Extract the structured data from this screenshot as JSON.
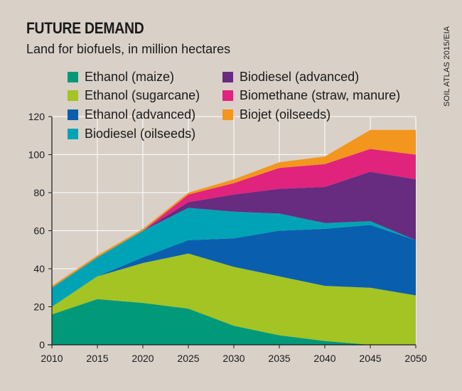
{
  "title": "FUTURE DEMAND",
  "subtitle": "Land for biofuels, in million hectares",
  "source": "SOIL ATLAS 2015/EIA",
  "chart_data": {
    "type": "area",
    "stacked": true,
    "x": [
      2010,
      2015,
      2020,
      2025,
      2030,
      2035,
      2040,
      2045,
      2050
    ],
    "ylim": [
      0,
      120
    ],
    "yticks": [
      0,
      20,
      40,
      60,
      80,
      100,
      120
    ],
    "grid": true,
    "legend_position": "top-left, two columns",
    "series": [
      {
        "name": "Ethanol (maize)",
        "color": "#00997a",
        "values": [
          16,
          24,
          22,
          19,
          10,
          5,
          2,
          0,
          0
        ]
      },
      {
        "name": "Ethanol (sugarcane)",
        "color": "#a3c423",
        "values": [
          4,
          12,
          21,
          29,
          31,
          31,
          29,
          30,
          26
        ]
      },
      {
        "name": "Ethanol (advanced)",
        "color": "#0a5eae",
        "values": [
          0,
          0,
          3,
          7,
          15,
          24,
          30,
          33,
          29
        ]
      },
      {
        "name": "Biodiesel (oilseeds)",
        "color": "#00a3b5",
        "values": [
          10,
          10,
          14,
          17,
          14,
          9,
          3,
          2,
          0
        ]
      },
      {
        "name": "Biodiesel (advanced)",
        "color": "#672b7f",
        "values": [
          0,
          0,
          0,
          3,
          9,
          13,
          19,
          26,
          32
        ]
      },
      {
        "name": "Biomethane (straw, manure)",
        "color": "#e0237c",
        "values": [
          0,
          0,
          0,
          4,
          6,
          11,
          12,
          12,
          13
        ]
      },
      {
        "name": "Biojet (oilseeds)",
        "color": "#f2961e",
        "values": [
          1,
          1,
          1,
          1,
          2,
          3,
          4,
          10,
          13
        ]
      }
    ]
  }
}
